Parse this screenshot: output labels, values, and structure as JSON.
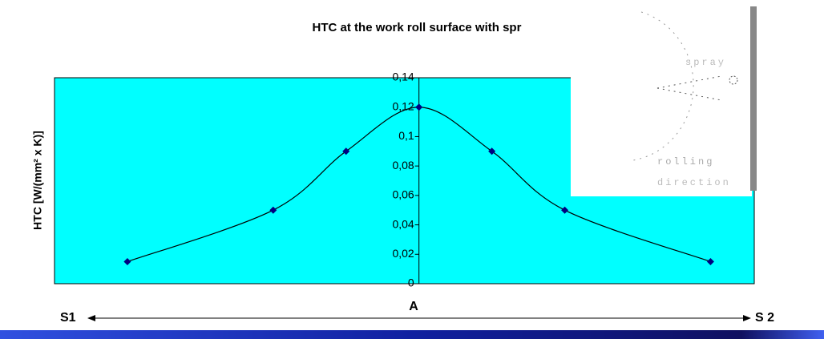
{
  "chart_data": {
    "type": "line",
    "title": "HTC at the work roll surface with spr",
    "y_label": "HTC [W/(mm² x K)]",
    "x": [
      -4,
      -2,
      -1,
      0,
      1,
      2,
      4
    ],
    "values": [
      0.015,
      0.05,
      0.09,
      0.12,
      0.09,
      0.05,
      0.015
    ],
    "color": "#000080",
    "xlim": [
      -5,
      4.6
    ],
    "ylim": [
      0,
      0.14
    ],
    "yticks": [
      0,
      {
        "value": 0.02,
        "label": "0,02"
      },
      {
        "value": 0.04,
        "label": "0,04"
      },
      {
        "value": 0.06,
        "label": "0,06"
      },
      {
        "value": 0.08,
        "label": "0,08"
      },
      {
        "value": 0.1,
        "label": "0,1"
      },
      {
        "value": 0.12,
        "label": "0,12"
      },
      {
        "value": 0.14,
        "label": "0,14"
      }
    ],
    "left_label": "S1",
    "center_label": "A",
    "right_label": "S 2"
  },
  "inset": {
    "labels": [
      "spray",
      "rolling",
      "direction"
    ]
  }
}
